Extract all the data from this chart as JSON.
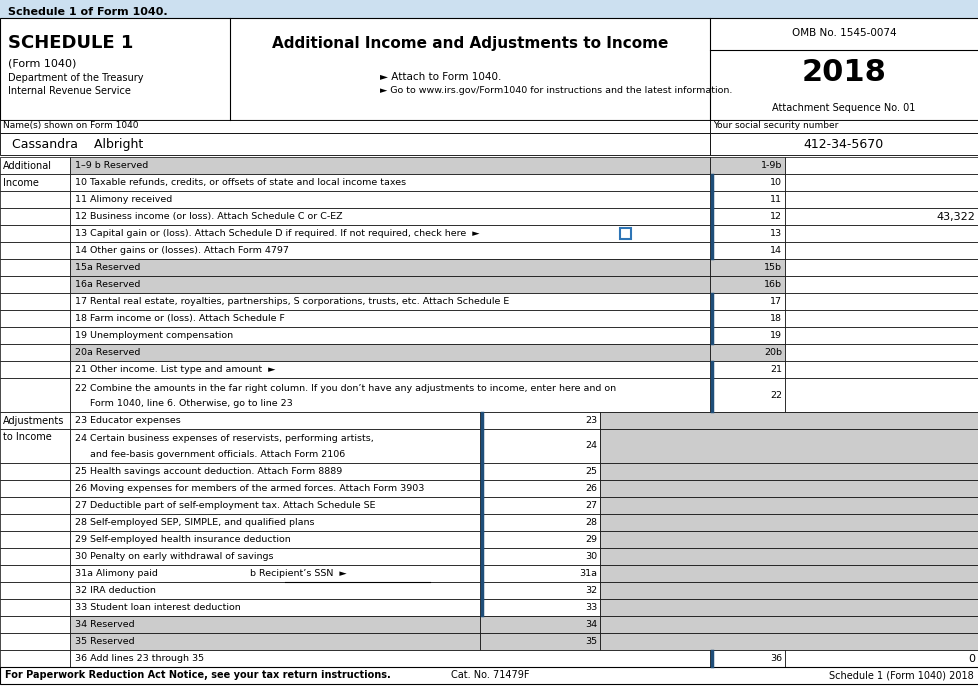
{
  "title_bar_text": "Schedule 1 of Form 1040.",
  "title_bar_bg": "#cce0f0",
  "schedule_title": "SCHEDULE 1",
  "form_subtitle": "(Form 1040)",
  "dept": "Department of the Treasury",
  "irs": "Internal Revenue Service",
  "main_title": "Additional Income and Adjustments to Income",
  "attach_text": "► Attach to Form 1040.",
  "goto_text": "► Go to www.irs.gov/Form1040 for instructions and the latest information.",
  "omb_text": "OMB No. 1545-0074",
  "year": "2018",
  "attach_seq": "Attachment Sequence No. 01",
  "name_label": "Name(s) shown on Form 1040",
  "name_value": "Cassandra    Albright",
  "ssn_label": "Your social security number",
  "ssn_value": "412-34-5670",
  "bg_gray": "#cccccc",
  "line_color": "#1f4e79",
  "blue_tab": "#1f4e79",
  "footer_left": "For Paperwork Reduction Act Notice, see your tax return instructions.",
  "footer_cat": "Cat. No. 71479F",
  "footer_right": "Schedule 1 (Form 1040) 2018",
  "rows_income": [
    {
      "num": "1-9b",
      "label": "1–9 b Reserved",
      "gray": true,
      "value": ""
    },
    {
      "num": "10",
      "label": "10 Taxable refunds, credits, or offsets of state and local income taxes",
      "gray": false,
      "value": ""
    },
    {
      "num": "11",
      "label": "11 Alimony received",
      "gray": false,
      "value": ""
    },
    {
      "num": "12",
      "label": "12 Business income (or loss). Attach Schedule C or C-EZ",
      "gray": false,
      "value": "43,322"
    },
    {
      "num": "13",
      "label": "13 Capital gain or (loss). Attach Schedule D if required. If not required, check here  ►",
      "gray": false,
      "value": "",
      "checkbox": true
    },
    {
      "num": "14",
      "label": "14 Other gains or (losses). Attach Form 4797",
      "gray": false,
      "value": ""
    },
    {
      "num": "15b",
      "label": "15a Reserved",
      "gray": true,
      "value": ""
    },
    {
      "num": "16b",
      "label": "16a Reserved",
      "gray": true,
      "value": ""
    },
    {
      "num": "17",
      "label": "17 Rental real estate, royalties, partnerships, S corporations, trusts, etc. Attach Schedule E",
      "gray": false,
      "value": ""
    },
    {
      "num": "18",
      "label": "18 Farm income or (loss). Attach Schedule F",
      "gray": false,
      "value": ""
    },
    {
      "num": "19",
      "label": "19 Unemployment compensation",
      "gray": false,
      "value": ""
    },
    {
      "num": "20b",
      "label": "20a Reserved",
      "gray": true,
      "value": ""
    },
    {
      "num": "21",
      "label": "21 Other income. List type and amount  ►",
      "gray": false,
      "value": ""
    }
  ],
  "row22_lines": [
    "22 Combine the amounts in the far right column. If you don’t have any adjustments to income, enter here and on",
    "     Form 1040, line 6. Otherwise, go to line 23"
  ],
  "rows_adj": [
    {
      "num": "23",
      "label": "23 Educator expenses",
      "gray": false,
      "value": ""
    },
    {
      "num": "24",
      "label": "24 Certain business expenses of reservists, performing artists,",
      "label2": "     and fee-basis government officials. Attach Form 2106",
      "gray": false,
      "value": "",
      "tall": true
    },
    {
      "num": "25",
      "label": "25 Health savings account deduction. Attach Form 8889",
      "gray": false,
      "value": ""
    },
    {
      "num": "26",
      "label": "26 Moving expenses for members of the armed forces. Attach Form 3903",
      "gray": false,
      "value": ""
    },
    {
      "num": "27",
      "label": "27 Deductible part of self-employment tax. Attach Schedule SE",
      "gray": false,
      "value": ""
    },
    {
      "num": "28",
      "label": "28 Self-employed SEP, SIMPLE, and qualified plans",
      "gray": false,
      "value": ""
    },
    {
      "num": "29",
      "label": "29 Self-employed health insurance deduction",
      "gray": false,
      "value": ""
    },
    {
      "num": "30",
      "label": "30 Penalty on early withdrawal of savings",
      "gray": false,
      "value": ""
    },
    {
      "num": "31a",
      "label": "31a Alimony paid",
      "label_b": "b Recipient’s SSN  ►",
      "gray": false,
      "value": "",
      "special": true
    },
    {
      "num": "32",
      "label": "32 IRA deduction",
      "gray": false,
      "value": ""
    },
    {
      "num": "33",
      "label": "33 Student loan interest deduction",
      "gray": false,
      "value": ""
    },
    {
      "num": "34",
      "label": "34 Reserved",
      "gray": true,
      "value": ""
    },
    {
      "num": "35",
      "label": "35 Reserved",
      "gray": true,
      "value": ""
    }
  ]
}
